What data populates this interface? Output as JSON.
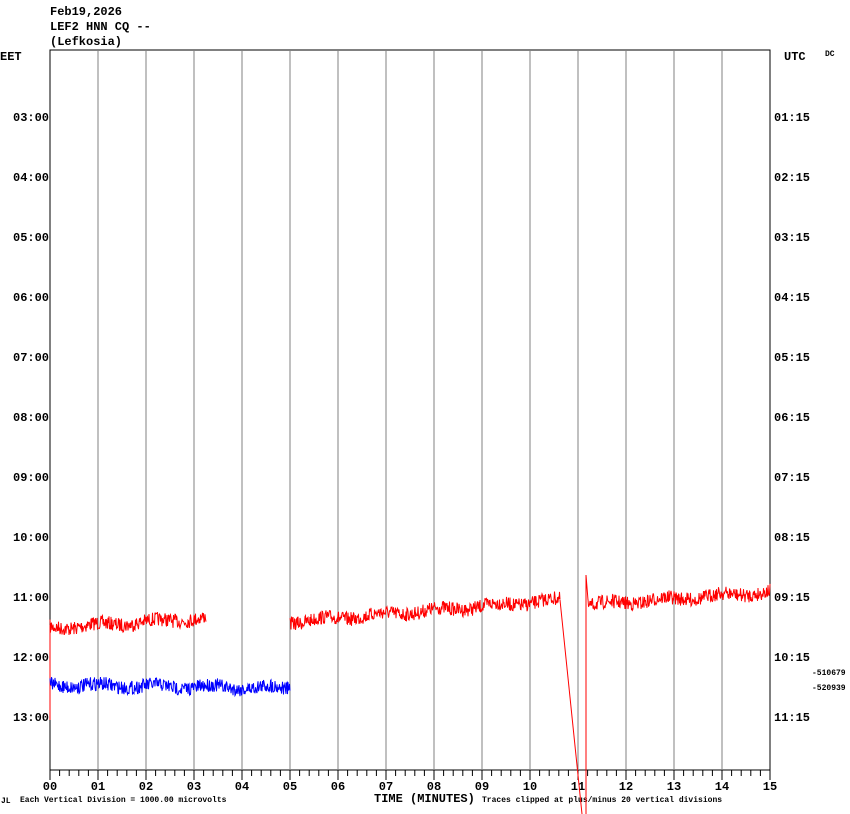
{
  "header": {
    "date": "Feb19,2026",
    "station": "LEF2 HNN CQ --",
    "location": "(Lefkosia)",
    "dc": "DC"
  },
  "left_axis": {
    "title": "EET",
    "labels": [
      "03:00",
      "04:00",
      "05:00",
      "06:00",
      "07:00",
      "08:00",
      "09:00",
      "10:00",
      "11:00",
      "12:00",
      "13:00"
    ]
  },
  "right_axis": {
    "title": "UTC",
    "labels": [
      "01:15",
      "02:15",
      "03:15",
      "04:15",
      "05:15",
      "06:15",
      "07:15",
      "08:15",
      "09:15",
      "10:15",
      "11:15"
    ]
  },
  "bottom_axis": {
    "title": "TIME (MINUTES)",
    "labels": [
      "00",
      "01",
      "02",
      "03",
      "04",
      "05",
      "06",
      "07",
      "08",
      "09",
      "10",
      "11",
      "12",
      "13",
      "14",
      "15"
    ]
  },
  "side_values": [
    "-510679",
    "-520939"
  ],
  "footer": {
    "mark": "JL",
    "scale": "Each Vertical Division = 1000.00 microvolts",
    "clip": "Traces clipped at plus/minus 20 vertical divisions"
  }
}
